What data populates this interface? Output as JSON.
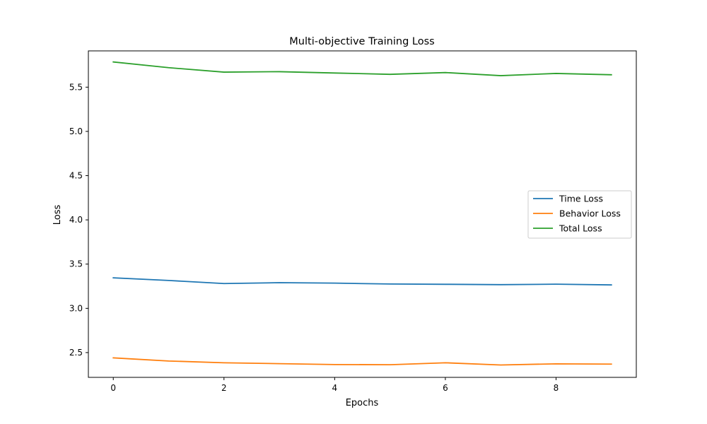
{
  "chart_data": {
    "type": "line",
    "title": "Multi-objective Training Loss",
    "xlabel": "Epochs",
    "ylabel": "Loss",
    "x": [
      0,
      1,
      2,
      3,
      4,
      5,
      6,
      7,
      8,
      9
    ],
    "xlim": [
      -0.45,
      9.45
    ],
    "ylim": [
      2.22,
      5.91
    ],
    "xticks": [
      0,
      2,
      4,
      6,
      8
    ],
    "yticks": [
      2.5,
      3.0,
      3.5,
      4.0,
      4.5,
      5.0,
      5.5
    ],
    "xtick_labels": [
      "0",
      "2",
      "4",
      "6",
      "8"
    ],
    "ytick_labels": [
      "2.5",
      "3.0",
      "3.5",
      "4.0",
      "4.5",
      "5.0",
      "5.5"
    ],
    "grid": false,
    "legend_position": "center-right",
    "series": [
      {
        "name": "Time Loss",
        "color": "#1f77b4",
        "values": [
          3.345,
          3.315,
          3.28,
          3.29,
          3.285,
          3.275,
          3.272,
          3.268,
          3.273,
          3.265
        ]
      },
      {
        "name": "Behavior Loss",
        "color": "#ff7f0e",
        "values": [
          2.44,
          2.405,
          2.385,
          2.375,
          2.365,
          2.363,
          2.385,
          2.36,
          2.373,
          2.37
        ]
      },
      {
        "name": "Total Loss",
        "color": "#2ca02c",
        "values": [
          5.785,
          5.72,
          5.67,
          5.675,
          5.66,
          5.645,
          5.665,
          5.63,
          5.655,
          5.64
        ]
      }
    ]
  }
}
